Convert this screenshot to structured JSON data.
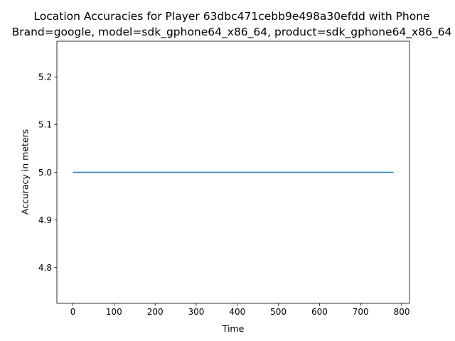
{
  "chart_data": {
    "type": "line",
    "title_lines": [
      "Location Accuracies for Player 63dbc471cebb9e498a30efdd with Phone",
      "Brand=google, model=sdk_gphone64_x86_64, product=sdk_gphone64_x86_64"
    ],
    "xlabel": "Time",
    "ylabel": "Accuracy in meters",
    "xlim": [
      -39,
      819
    ],
    "ylim": [
      4.725,
      5.275
    ],
    "xticks": [
      0,
      100,
      200,
      300,
      400,
      500,
      600,
      700,
      800
    ],
    "xtick_labels": [
      "0",
      "100",
      "200",
      "300",
      "400",
      "500",
      "600",
      "700",
      "800"
    ],
    "yticks": [
      4.8,
      4.9,
      5.0,
      5.1,
      5.2
    ],
    "ytick_labels": [
      "4.8",
      "4.9",
      "5.0",
      "5.1",
      "5.2"
    ],
    "grid": false,
    "series": [
      {
        "color": "#1f77b4",
        "x": [
          0,
          780
        ],
        "y": [
          5.0,
          5.0
        ]
      }
    ]
  }
}
